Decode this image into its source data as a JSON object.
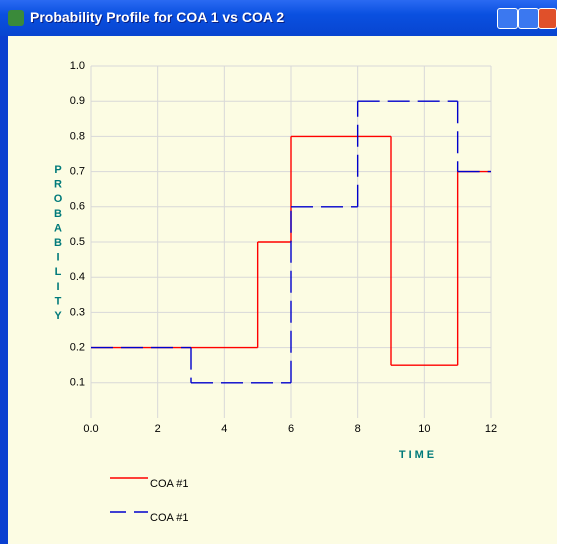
{
  "window": {
    "title": "Probability Profile for COA 1 vs COA 2"
  },
  "chart_data": {
    "type": "step",
    "ylabel": "PROBABILITY",
    "xlabel": "TIME",
    "xlim": [
      0,
      12
    ],
    "ylim": [
      0,
      1
    ],
    "xticks": [
      {
        "value": 0,
        "label": "0.0"
      },
      2,
      4,
      6,
      8,
      10,
      12
    ],
    "yticks": [
      0.1,
      0.2,
      0.3,
      0.4,
      0.5,
      0.6,
      0.7,
      0.8,
      0.9,
      {
        "value": 1,
        "label": "1.0"
      }
    ],
    "grid": true,
    "series": [
      {
        "name": "COA #1",
        "color": "#ff0000",
        "dash": false,
        "x": [
          0,
          5,
          6,
          9,
          11
        ],
        "values": [
          0.2,
          0.5,
          0.8,
          0.15,
          0.7
        ]
      },
      {
        "name": "COA #1",
        "color": "#0000cc",
        "dash": true,
        "x": [
          0,
          3,
          6,
          8,
          11
        ],
        "values": [
          0.2,
          0.1,
          0.6,
          0.9,
          0.7
        ]
      }
    ]
  }
}
